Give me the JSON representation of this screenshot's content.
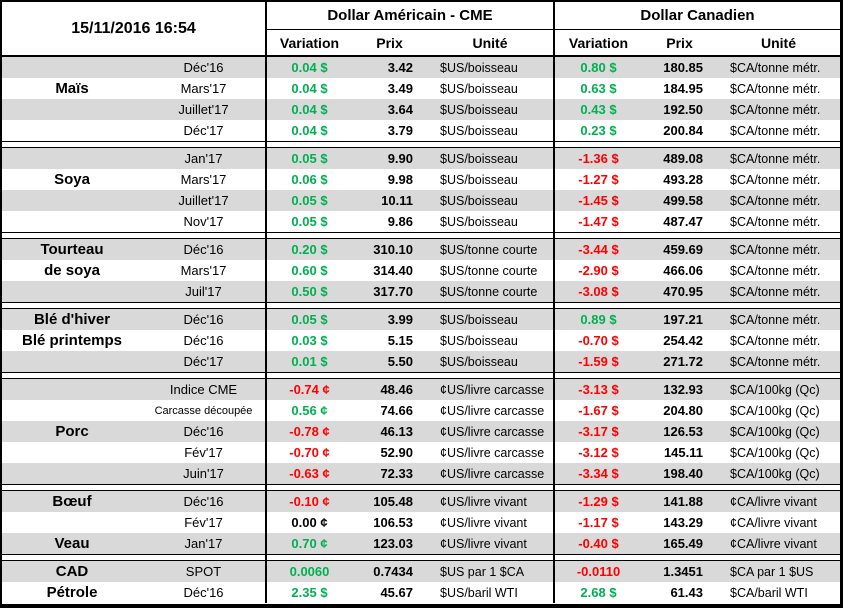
{
  "meta": {
    "timestamp": "15/11/2016 16:54"
  },
  "header": {
    "usd_group": "Dollar Américain - CME",
    "cad_group": "Dollar Canadien",
    "columns": [
      "Variation",
      "Prix",
      "Unité"
    ]
  },
  "colors": {
    "positive": "#00B050",
    "negative": "#FF0000",
    "neutral": "#000000",
    "row_stripe": "#D9D9D9",
    "border": "#000000",
    "background": "#FFFFFF"
  },
  "sections": [
    {
      "rows": [
        {
          "label": "",
          "month": "Déc'16",
          "us_var": "0.04 $",
          "us_prix": "3.42",
          "us_unit": "$US/boisseau",
          "ca_var": "0.80 $",
          "ca_prix": "180.85",
          "ca_unit": "$CA/tonne métr."
        },
        {
          "label": "Maïs",
          "month": "Mars'17",
          "us_var": "0.04 $",
          "us_prix": "3.49",
          "us_unit": "$US/boisseau",
          "ca_var": "0.63 $",
          "ca_prix": "184.95",
          "ca_unit": "$CA/tonne métr."
        },
        {
          "label": "",
          "month": "Juillet'17",
          "us_var": "0.04 $",
          "us_prix": "3.64",
          "us_unit": "$US/boisseau",
          "ca_var": "0.43 $",
          "ca_prix": "192.50",
          "ca_unit": "$CA/tonne métr."
        },
        {
          "label": "",
          "month": "Déc'17",
          "us_var": "0.04 $",
          "us_prix": "3.79",
          "us_unit": "$US/boisseau",
          "ca_var": "0.23 $",
          "ca_prix": "200.84",
          "ca_unit": "$CA/tonne métr."
        }
      ]
    },
    {
      "rows": [
        {
          "label": "",
          "month": "Jan'17",
          "us_var": "0.05 $",
          "us_prix": "9.90",
          "us_unit": "$US/boisseau",
          "ca_var": "-1.36 $",
          "ca_prix": "489.08",
          "ca_unit": "$CA/tonne métr."
        },
        {
          "label": "Soya",
          "month": "Mars'17",
          "us_var": "0.06 $",
          "us_prix": "9.98",
          "us_unit": "$US/boisseau",
          "ca_var": "-1.27 $",
          "ca_prix": "493.28",
          "ca_unit": "$CA/tonne métr."
        },
        {
          "label": "",
          "month": "Juillet'17",
          "us_var": "0.05 $",
          "us_prix": "10.11",
          "us_unit": "$US/boisseau",
          "ca_var": "-1.45 $",
          "ca_prix": "499.58",
          "ca_unit": "$CA/tonne métr."
        },
        {
          "label": "",
          "month": "Nov'17",
          "us_var": "0.05 $",
          "us_prix": "9.86",
          "us_unit": "$US/boisseau",
          "ca_var": "-1.47 $",
          "ca_prix": "487.47",
          "ca_unit": "$CA/tonne métr."
        }
      ]
    },
    {
      "rows": [
        {
          "label": "Tourteau",
          "month": "Déc'16",
          "us_var": "0.20 $",
          "us_prix": "310.10",
          "us_unit": "$US/tonne courte",
          "ca_var": "-3.44 $",
          "ca_prix": "459.69",
          "ca_unit": "$CA/tonne métr."
        },
        {
          "label": "de soya",
          "month": "Mars'17",
          "us_var": "0.60 $",
          "us_prix": "314.40",
          "us_unit": "$US/tonne courte",
          "ca_var": "-2.90 $",
          "ca_prix": "466.06",
          "ca_unit": "$CA/tonne métr."
        },
        {
          "label": "",
          "month": "Juil'17",
          "us_var": "0.50 $",
          "us_prix": "317.70",
          "us_unit": "$US/tonne courte",
          "ca_var": "-3.08 $",
          "ca_prix": "470.95",
          "ca_unit": "$CA/tonne métr."
        }
      ]
    },
    {
      "rows": [
        {
          "label": "Blé d'hiver",
          "month": "Déc'16",
          "us_var": "0.05 $",
          "us_prix": "3.99",
          "us_unit": "$US/boisseau",
          "ca_var": "0.89 $",
          "ca_prix": "197.21",
          "ca_unit": "$CA/tonne métr."
        },
        {
          "label": "Blé printemps",
          "month": "Déc'16",
          "us_var": "0.03 $",
          "us_prix": "5.15",
          "us_unit": "$US/boisseau",
          "ca_var": "-0.70 $",
          "ca_prix": "254.42",
          "ca_unit": "$CA/tonne métr."
        },
        {
          "label": "",
          "month": "Déc'17",
          "us_var": "0.01 $",
          "us_prix": "5.50",
          "us_unit": "$US/boisseau",
          "ca_var": "-1.59 $",
          "ca_prix": "271.72",
          "ca_unit": "$CA/tonne métr."
        }
      ]
    },
    {
      "rows": [
        {
          "label": "",
          "month": "Indice CME",
          "us_var": "-0.74 ¢",
          "us_prix": "48.46",
          "us_unit": "¢US/livre carcasse",
          "ca_var": "-3.13 $",
          "ca_prix": "132.93",
          "ca_unit": "$CA/100kg (Qc)"
        },
        {
          "label": "",
          "month": "Carcasse découpée",
          "us_var": "0.56 ¢",
          "us_prix": "74.66",
          "us_unit": "¢US/livre carcasse",
          "ca_var": "-1.67 $",
          "ca_prix": "204.80",
          "ca_unit": "$CA/100kg (Qc)"
        },
        {
          "label": "Porc",
          "month": "Déc'16",
          "us_var": "-0.78 ¢",
          "us_prix": "46.13",
          "us_unit": "¢US/livre carcasse",
          "ca_var": "-3.17 $",
          "ca_prix": "126.53",
          "ca_unit": "$CA/100kg (Qc)"
        },
        {
          "label": "",
          "month": "Fév'17",
          "us_var": "-0.70 ¢",
          "us_prix": "52.90",
          "us_unit": "¢US/livre carcasse",
          "ca_var": "-3.12 $",
          "ca_prix": "145.11",
          "ca_unit": "$CA/100kg (Qc)"
        },
        {
          "label": "",
          "month": "Juin'17",
          "us_var": "-0.63 ¢",
          "us_prix": "72.33",
          "us_unit": "¢US/livre carcasse",
          "ca_var": "-3.34 $",
          "ca_prix": "198.40",
          "ca_unit": "$CA/100kg (Qc)"
        }
      ]
    },
    {
      "rows": [
        {
          "label": "Bœuf",
          "month": "Déc'16",
          "us_var": "-0.10 ¢",
          "us_prix": "105.48",
          "us_unit": "¢US/livre vivant",
          "ca_var": "-1.29 $",
          "ca_prix": "141.88",
          "ca_unit": "¢CA/livre vivant"
        },
        {
          "label": "",
          "month": "Fév'17",
          "us_var": "0.00 ¢",
          "us_prix": "106.53",
          "us_unit": "¢US/livre vivant",
          "ca_var": "-1.17 $",
          "ca_prix": "143.29",
          "ca_unit": "¢CA/livre vivant"
        },
        {
          "label": "Veau",
          "month": "Jan'17",
          "us_var": "0.70 ¢",
          "us_prix": "123.03",
          "us_unit": "¢US/livre vivant",
          "ca_var": "-0.40 $",
          "ca_prix": "165.49",
          "ca_unit": "¢CA/livre vivant"
        }
      ]
    },
    {
      "rows": [
        {
          "label": "CAD",
          "month": "SPOT",
          "us_var": "0.0060",
          "us_prix": "0.7434",
          "us_unit": "$US par 1 $CA",
          "ca_var": "-0.0110",
          "ca_prix": "1.3451",
          "ca_unit": "$CA par 1 $US"
        },
        {
          "label": "Pétrole",
          "month": "Déc'16",
          "us_var": "2.35 $",
          "us_prix": "45.67",
          "us_unit": "$US/baril WTI",
          "ca_var": "2.68 $",
          "ca_prix": "61.43",
          "ca_unit": "$CA/baril WTI"
        }
      ]
    }
  ]
}
